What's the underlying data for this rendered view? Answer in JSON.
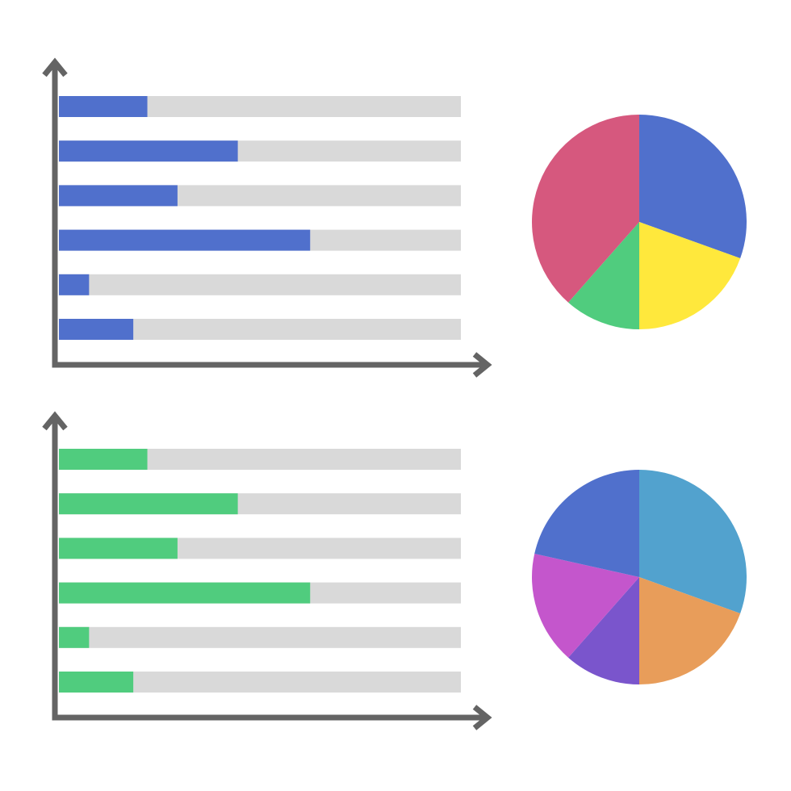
{
  "chart_data": [
    {
      "type": "bar",
      "orientation": "horizontal",
      "title": "",
      "xlabel": "",
      "ylabel": "",
      "xlim": [
        0,
        100
      ],
      "grid": false,
      "track_color": "#d9d9d9",
      "bar_color": "#5070cc",
      "values": [
        22,
        44.5,
        29.5,
        62.5,
        7.5,
        18.5
      ]
    },
    {
      "type": "pie",
      "title": "",
      "slices": [
        {
          "value": 30.5,
          "color": "#5070cc"
        },
        {
          "value": 19.5,
          "color": "#ffe83c"
        },
        {
          "value": 11.5,
          "color": "#50cc7e"
        },
        {
          "value": 38.5,
          "color": "#d6587e"
        }
      ]
    },
    {
      "type": "bar",
      "orientation": "horizontal",
      "title": "",
      "xlabel": "",
      "ylabel": "",
      "xlim": [
        0,
        100
      ],
      "grid": false,
      "track_color": "#d9d9d9",
      "bar_color": "#50cc7e",
      "values": [
        22,
        44.5,
        29.5,
        62.5,
        7.5,
        18.5
      ]
    },
    {
      "type": "pie",
      "title": "",
      "slices": [
        {
          "value": 30.5,
          "color": "#52a2ce"
        },
        {
          "value": 19.5,
          "color": "#e89d5a"
        },
        {
          "value": 11.5,
          "color": "#7a55cc"
        },
        {
          "value": 17,
          "color": "#c456cc"
        },
        {
          "value": 21.5,
          "color": "#5070cc"
        }
      ]
    }
  ]
}
